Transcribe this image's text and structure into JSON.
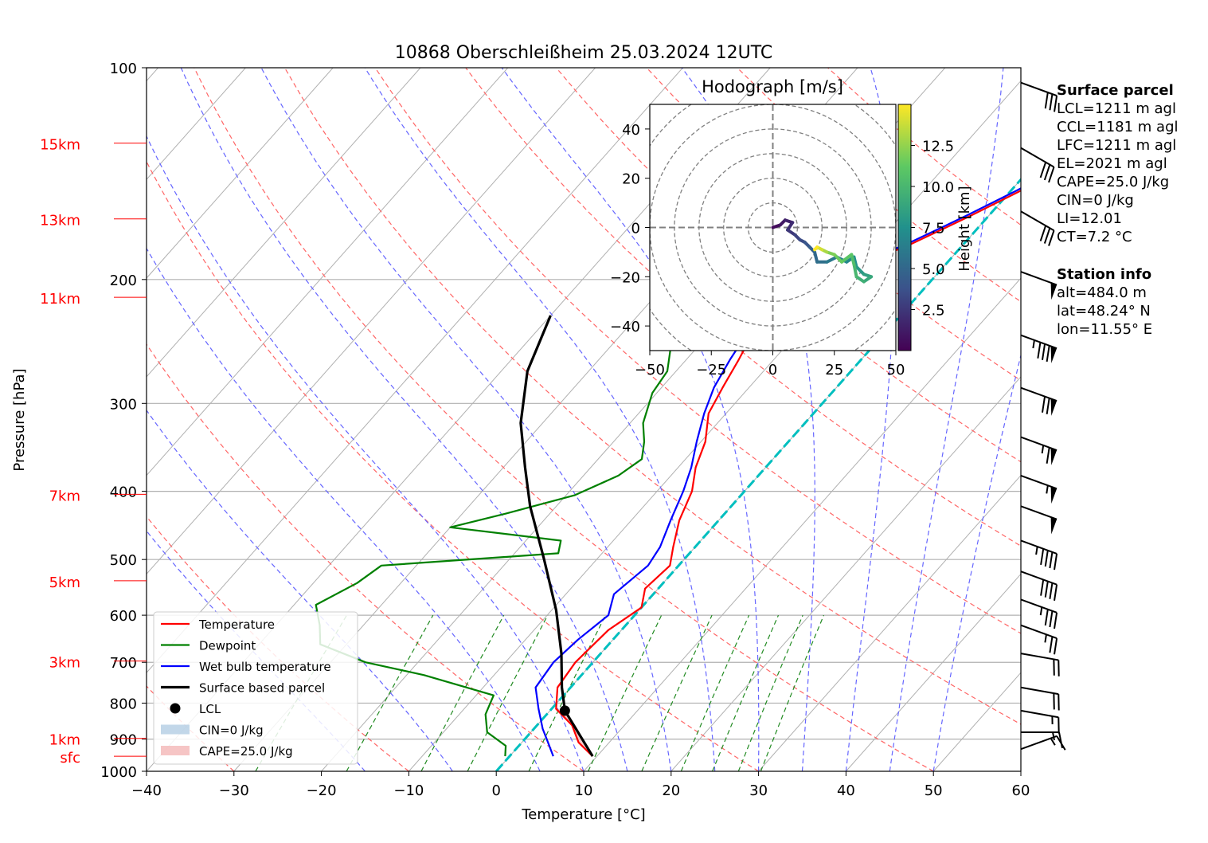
{
  "chart_data": {
    "type": "line",
    "title": "10868 Oberschleißheim 25.03.2024 12UTC",
    "xlabel": "Temperature [°C]",
    "ylabel": "Pressure [hPa]",
    "xlim": [
      -40,
      60
    ],
    "ylim": [
      1000,
      100
    ],
    "y_scale": "log",
    "skew": true,
    "grid": true,
    "x_ticks": [
      "−40",
      "−30",
      "−20",
      "−10",
      "0",
      "10",
      "20",
      "30",
      "40",
      "50",
      "60"
    ],
    "y_ticks": [
      "100",
      "200",
      "300",
      "400",
      "500",
      "600",
      "700",
      "800",
      "900",
      "1000"
    ],
    "height_labels": [
      {
        "label": "15km",
        "p": 128
      },
      {
        "label": "13km",
        "p": 164
      },
      {
        "label": "11km",
        "p": 212
      },
      {
        "label": "7km",
        "p": 404
      },
      {
        "label": "5km",
        "p": 536
      },
      {
        "label": "3km",
        "p": 697
      },
      {
        "label": "1km",
        "p": 898
      },
      {
        "label": "sfc",
        "p": 952
      }
    ],
    "series": [
      {
        "name": "Temperature",
        "color": "#ff0000",
        "points": [
          [
            7.2,
            125
          ],
          [
            5.5,
            130
          ],
          [
            4.0,
            138
          ],
          [
            1.0,
            150
          ],
          [
            -2.0,
            162
          ],
          [
            -3.5,
            168
          ],
          [
            -6.0,
            178
          ],
          [
            -9.0,
            188
          ],
          [
            -10.5,
            195
          ],
          [
            -14.5,
            201
          ],
          [
            -15.5,
            208
          ],
          [
            -15.5,
            230
          ],
          [
            -14.0,
            260
          ],
          [
            -13.0,
            285
          ],
          [
            -12.0,
            310
          ],
          [
            -9.5,
            340
          ],
          [
            -8.0,
            370
          ],
          [
            -6.0,
            400
          ],
          [
            -4.5,
            440
          ],
          [
            -2.5,
            480
          ],
          [
            -1.0,
            510
          ],
          [
            -1.5,
            550
          ],
          [
            0.0,
            585
          ],
          [
            -1.5,
            630
          ],
          [
            -2.0,
            700
          ],
          [
            -1.5,
            760
          ],
          [
            0.5,
            815
          ],
          [
            4.0,
            860
          ],
          [
            6.5,
            910
          ],
          [
            9.5,
            952
          ]
        ]
      },
      {
        "name": "Dewpoint",
        "color": "#008000",
        "points": [
          [
            -21.5,
            127
          ],
          [
            -24.0,
            138
          ],
          [
            -26.5,
            150
          ],
          [
            -29.0,
            162
          ],
          [
            -31.5,
            175
          ],
          [
            -28.0,
            190
          ],
          [
            -27.5,
            210
          ],
          [
            -25.0,
            230
          ],
          [
            -23.0,
            250
          ],
          [
            -21.0,
            270
          ],
          [
            -20.5,
            290
          ],
          [
            -18.5,
            320
          ],
          [
            -16.5,
            340
          ],
          [
            -15.0,
            360
          ],
          [
            -16.0,
            380
          ],
          [
            -19.0,
            405
          ],
          [
            -25.0,
            430
          ],
          [
            -30.0,
            450
          ],
          [
            -16.0,
            470
          ],
          [
            -15.0,
            490
          ],
          [
            -34.0,
            510
          ],
          [
            -35.0,
            540
          ],
          [
            -37.5,
            580
          ],
          [
            -35.0,
            620
          ],
          [
            -33.0,
            660
          ],
          [
            -26.0,
            700
          ],
          [
            -18.0,
            730
          ],
          [
            -8.0,
            780
          ],
          [
            -7.0,
            830
          ],
          [
            -5.0,
            880
          ],
          [
            -1.5,
            920
          ],
          [
            -0.5,
            952
          ]
        ]
      },
      {
        "name": "Wet bulb temperature",
        "color": "#0000ff",
        "points": [
          [
            6.8,
            125
          ],
          [
            5.0,
            130
          ],
          [
            3.5,
            138
          ],
          [
            0.5,
            150
          ],
          [
            -2.5,
            162
          ],
          [
            -4.0,
            168
          ],
          [
            -6.5,
            178
          ],
          [
            -9.5,
            188
          ],
          [
            -11.0,
            195
          ],
          [
            -15.0,
            201
          ],
          [
            -15.8,
            208
          ],
          [
            -16.0,
            230
          ],
          [
            -15.0,
            260
          ],
          [
            -14.0,
            285
          ],
          [
            -12.5,
            310
          ],
          [
            -10.5,
            340
          ],
          [
            -8.5,
            370
          ],
          [
            -7.0,
            400
          ],
          [
            -5.5,
            440
          ],
          [
            -4.0,
            480
          ],
          [
            -3.5,
            510
          ],
          [
            -4.5,
            560
          ],
          [
            -3.0,
            600
          ],
          [
            -4.0,
            650
          ],
          [
            -4.5,
            700
          ],
          [
            -4.0,
            760
          ],
          [
            -1.5,
            815
          ],
          [
            1.0,
            870
          ],
          [
            3.0,
            910
          ],
          [
            5.0,
            952
          ]
        ]
      },
      {
        "name": "Surface based parcel",
        "color": "#000000",
        "points": [
          [
            9.5,
            952
          ],
          [
            1.7,
            820
          ],
          [
            -1.0,
            760
          ],
          [
            -4.5,
            680
          ],
          [
            -9.5,
            590
          ],
          [
            -16.0,
            500
          ],
          [
            -23.0,
            420
          ],
          [
            -27.5,
            370
          ],
          [
            -32.5,
            320
          ],
          [
            -37.0,
            270
          ],
          [
            -40.0,
            225
          ]
        ]
      }
    ],
    "lcl": {
      "name": "LCL",
      "t": 1.7,
      "p": 820
    },
    "legend": {
      "placement": "lower-left",
      "entries": [
        "Temperature",
        "Dewpoint",
        "Wet bulb temperature",
        "Surface based parcel",
        "LCL",
        "CIN=0 J/kg",
        "CAPE=25.0 J/kg"
      ]
    },
    "colors": {
      "temperature": "#ff0000",
      "dewpoint": "#008000",
      "wetbulb": "#0000ff",
      "parcel": "#000000",
      "zero_isotherm": "#00bfbf",
      "dry_adiabat": "#ff6666",
      "moist_adiabat": "#6666ff",
      "mixing_ratio": "#228b22",
      "cin_fill": "#b3cde3",
      "cape_fill": "#f4b6b6"
    },
    "wind_barbs": [
      {
        "p": 105,
        "speed_kt": 30,
        "dir": 290
      },
      {
        "p": 130,
        "speed_kt": 30,
        "dir": 300
      },
      {
        "p": 160,
        "speed_kt": 30,
        "dir": 300
      },
      {
        "p": 195,
        "speed_kt": 50,
        "dir": 290
      },
      {
        "p": 240,
        "speed_kt": 85,
        "dir": 290
      },
      {
        "p": 285,
        "speed_kt": 70,
        "dir": 290
      },
      {
        "p": 335,
        "speed_kt": 65,
        "dir": 290
      },
      {
        "p": 380,
        "speed_kt": 55,
        "dir": 290
      },
      {
        "p": 420,
        "speed_kt": 50,
        "dir": 290
      },
      {
        "p": 470,
        "speed_kt": 45,
        "dir": 290
      },
      {
        "p": 520,
        "speed_kt": 40,
        "dir": 290
      },
      {
        "p": 570,
        "speed_kt": 35,
        "dir": 290
      },
      {
        "p": 620,
        "speed_kt": 25,
        "dir": 290
      },
      {
        "p": 680,
        "speed_kt": 20,
        "dir": 280
      },
      {
        "p": 760,
        "speed_kt": 20,
        "dir": 280
      },
      {
        "p": 820,
        "speed_kt": 15,
        "dir": 280
      },
      {
        "p": 880,
        "speed_kt": 15,
        "dir": 270
      },
      {
        "p": 930,
        "speed_kt": 15,
        "dir": 250
      }
    ],
    "hodograph": {
      "title": "Hodograph [m/s]",
      "xlim": [
        -50,
        50
      ],
      "ylim": [
        -50,
        50
      ],
      "x_ticks": [
        "−50",
        "−25",
        "0",
        "25",
        "50"
      ],
      "y_ticks": [
        "40",
        "20",
        "0",
        "−20",
        "−40"
      ],
      "colorbar_label": "Height [km]",
      "colorbar_ticks": [
        "2.5",
        "5.0",
        "7.5",
        "10.0",
        "12.5"
      ],
      "colorbar_range": [
        0,
        15
      ],
      "points": [
        [
          3,
          1,
          0.5
        ],
        [
          5,
          3,
          1.0
        ],
        [
          8,
          2,
          1.5
        ],
        [
          6,
          -1,
          2.0
        ],
        [
          9,
          -3,
          2.5
        ],
        [
          11,
          -5,
          3.0
        ],
        [
          13,
          -6,
          3.5
        ],
        [
          15,
          -8,
          4.0
        ],
        [
          17,
          -10,
          4.5
        ],
        [
          18,
          -14,
          5.0
        ],
        [
          22,
          -14,
          5.5
        ],
        [
          26,
          -12,
          6.0
        ],
        [
          30,
          -14,
          6.5
        ],
        [
          33,
          -12,
          7.0
        ],
        [
          34,
          -16,
          7.5
        ],
        [
          37,
          -19,
          8.0
        ],
        [
          40,
          -20,
          8.5
        ],
        [
          37,
          -22,
          9.0
        ],
        [
          34,
          -20,
          9.5
        ],
        [
          33,
          -15,
          10.0
        ],
        [
          32,
          -11,
          10.5
        ],
        [
          28,
          -14,
          11.0
        ],
        [
          25,
          -11,
          11.5
        ],
        [
          22,
          -10,
          12.0
        ],
        [
          20,
          -9,
          13.0
        ],
        [
          18,
          -8,
          14.0
        ],
        [
          17,
          -9,
          15.0
        ]
      ]
    }
  },
  "info": {
    "surface_title": "Surface parcel",
    "lines": [
      "LCL=1211 m agl",
      "CCL=1181 m agl",
      "LFC=1211 m agl",
      "EL=2021 m agl",
      "CAPE=25.0 J/kg",
      "CIN=0 J/kg",
      "LI=12.01",
      "CT=7.2 °C"
    ],
    "station_title": "Station info",
    "station_lines": [
      "alt=484.0 m",
      "lat=48.24° N",
      "lon=11.55° E"
    ]
  }
}
